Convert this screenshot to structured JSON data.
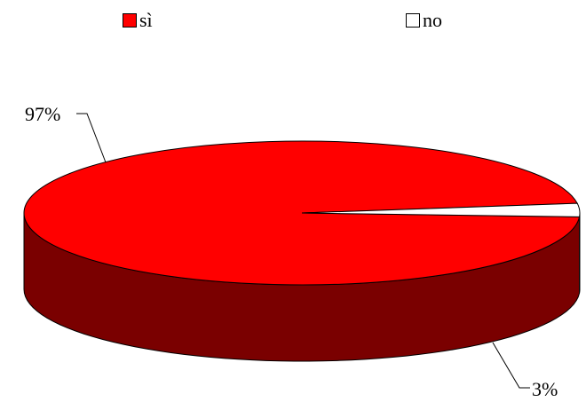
{
  "chart_data": {
    "type": "pie",
    "title": "",
    "categories": [
      "sì",
      "no"
    ],
    "values": [
      97,
      3
    ],
    "data_labels": [
      "97%",
      "3%"
    ],
    "legend_placement": "top",
    "three_d": true,
    "colors": {
      "slice_top": "#ff0000",
      "slice_side": "#7a0000",
      "no_top": "#ffffff",
      "no_side": "#808080",
      "outline": "#000000"
    }
  }
}
